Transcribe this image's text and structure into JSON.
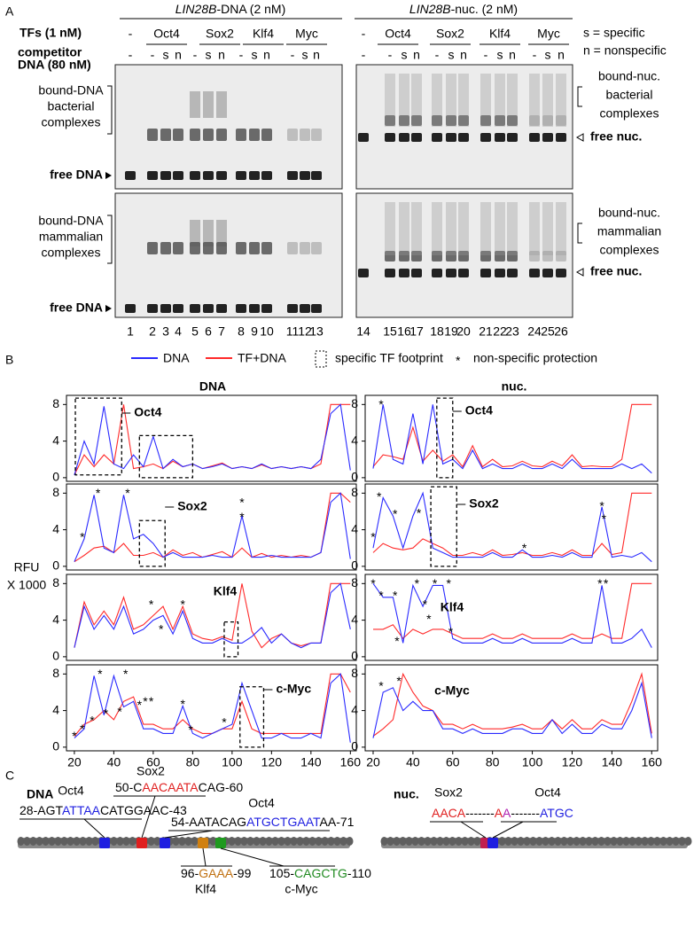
{
  "panel_a": {
    "label": "A",
    "header_dna": [
      {
        "text": "LIN28B",
        "italic": true
      },
      {
        "text": "-DNA (2 nM)"
      }
    ],
    "header_nuc": [
      {
        "text": "LIN28B",
        "italic": true
      },
      {
        "text": "-nuc. (2 nM)"
      }
    ],
    "tfs_label": "TFs (1 nM)",
    "tfs": [
      {
        "text": "-"
      },
      {
        "text": "Oct4",
        "color": "#1f1fe0"
      },
      {
        "text": "Sox2",
        "color": "#e01f1f"
      },
      {
        "text": "Klf4",
        "color": "#a0601a"
      },
      {
        "text": "Myc",
        "color": "#1f8a1f"
      },
      {
        "text": "-"
      },
      {
        "text": "Oct4",
        "color": "#1f1fe0"
      },
      {
        "text": "Sox2",
        "color": "#e01f1f"
      },
      {
        "text": "Klf4",
        "color": "#a0601a"
      },
      {
        "text": "Myc",
        "color": "#1f8a1f"
      }
    ],
    "competitor_label": "competitor",
    "competitor_label2": "DNA (80 nM)",
    "competitor": [
      "-",
      "-",
      "s",
      "n",
      "-",
      "s",
      "n",
      "-",
      "s",
      "n",
      "-",
      "s",
      "n",
      "-",
      "-",
      "s",
      "n",
      "-",
      "s",
      "n",
      "-",
      "s",
      "n",
      "-",
      "s",
      "n"
    ],
    "legend_s": "s = specific",
    "legend_n": "n = nonspecific",
    "left_top": [
      "bound-DNA",
      "bacterial",
      "complexes"
    ],
    "left_bottom": [
      "bound-DNA",
      "mammalian",
      "complexes"
    ],
    "free_dna": "free DNA",
    "right_top": [
      "bound-nuc.",
      "bacterial",
      "complexes"
    ],
    "right_bottom": [
      "bound-nuc.",
      "mammalian",
      "complexes"
    ],
    "free_nuc": "free nuc.",
    "lanes": [
      1,
      2,
      3,
      4,
      5,
      6,
      7,
      8,
      9,
      10,
      11,
      12,
      13,
      14,
      15,
      16,
      17,
      18,
      19,
      20,
      21,
      22,
      23,
      24,
      25,
      26
    ]
  },
  "panel_b": {
    "label": "B",
    "legend": {
      "dna": "DNA",
      "tf_dna": "TF+DNA",
      "footprint": "specific TF footprint",
      "star": "*",
      "nonspecific": "non-specific protection"
    },
    "col_titles": [
      "DNA",
      "nuc."
    ],
    "y_label": [
      "RFU",
      "X 1000"
    ],
    "colors": {
      "dna": "#2a2aff",
      "tf_dna": "#ff2a2a"
    },
    "xlim": [
      16,
      163
    ],
    "ylim": [
      -0.4,
      9
    ],
    "xticks": [
      20,
      40,
      60,
      80,
      100,
      120,
      140,
      160
    ],
    "yticks": [
      0,
      4,
      8
    ],
    "x": [
      20,
      25,
      30,
      35,
      40,
      45,
      50,
      55,
      60,
      65,
      70,
      75,
      80,
      85,
      90,
      95,
      100,
      105,
      110,
      115,
      120,
      125,
      130,
      135,
      140,
      145,
      150,
      155,
      160
    ],
    "panels": [
      {
        "tf": "Oct4",
        "boxes": [
          {
            "x": [
              20.5,
              44
            ],
            "y": [
              0.3,
              8.7
            ]
          },
          {
            "x": [
              53,
              80
            ],
            "y": [
              0,
              4.6
            ]
          }
        ],
        "dna": [
          0.3,
          4,
          1.5,
          7.8,
          1.5,
          1,
          2.5,
          1.2,
          4.5,
          1,
          2,
          1.2,
          1.5,
          1,
          1.2,
          1.5,
          1,
          1.2,
          1,
          1.5,
          1,
          1.2,
          1,
          1.2,
          1,
          2,
          7,
          8,
          0.8
        ],
        "tf_dna": [
          0.3,
          2.5,
          1.2,
          2.5,
          1.5,
          8,
          1,
          1.2,
          1.5,
          1,
          1.8,
          1.2,
          1.5,
          1,
          1.3,
          1.6,
          1,
          1.2,
          1,
          1.4,
          1,
          1.2,
          1,
          1.2,
          1,
          1.5,
          8,
          8,
          8
        ],
        "stars": []
      },
      {
        "tf": "Oct4",
        "boxes": [
          {
            "x": [
              52,
              60
            ],
            "y": [
              0,
              8.7
            ]
          }
        ],
        "dna": [
          1,
          8,
          2,
          1.5,
          7,
          1.5,
          8,
          1.5,
          2,
          1,
          3,
          1,
          1.5,
          1,
          1,
          1.5,
          1,
          1,
          1.5,
          1,
          2,
          1,
          1,
          1,
          1,
          1.5,
          1,
          1.5,
          0.5
        ],
        "tf_dna": [
          1.2,
          2.5,
          2.3,
          2,
          5.5,
          1.8,
          3,
          1.8,
          2.5,
          1.2,
          3.5,
          1.2,
          2,
          1.2,
          1.3,
          1.8,
          1.3,
          1.2,
          1.8,
          1.3,
          2.5,
          1.2,
          1.3,
          1.2,
          1.2,
          2,
          8,
          8,
          8
        ],
        "stars": [
          [
            24,
            8.2
          ]
        ]
      },
      {
        "tf": "Sox2",
        "boxes": [
          {
            "x": [
              53,
              66
            ],
            "y": [
              0,
              5
            ]
          }
        ],
        "dna": [
          0.5,
          3,
          7.8,
          2,
          1.5,
          7.8,
          3,
          3.5,
          2.5,
          1,
          1.5,
          1,
          1,
          1,
          1.2,
          1,
          1,
          5.5,
          1,
          1,
          1.2,
          1,
          1,
          1,
          1,
          1.5,
          7,
          8,
          0.8
        ],
        "tf_dna": [
          0.5,
          1.2,
          2,
          2.2,
          1.5,
          2.5,
          1.2,
          1.2,
          1.5,
          1,
          1.8,
          1.2,
          1.5,
          1,
          1.3,
          1.6,
          1,
          2,
          1,
          1.4,
          1,
          1.2,
          1,
          1.2,
          1,
          1.5,
          8,
          8,
          7
        ],
        "stars": [
          [
            24,
            3.4
          ],
          [
            32,
            8.2
          ],
          [
            47,
            8.2
          ],
          [
            105,
            7.2
          ],
          [
            105,
            5.6
          ]
        ]
      },
      {
        "tf": "Sox2",
        "boxes": [
          {
            "x": [
              49,
              62
            ],
            "y": [
              0,
              8.7
            ]
          }
        ],
        "dna": [
          2,
          7.5,
          5.5,
          2,
          5.5,
          8,
          2,
          1.5,
          1,
          1,
          1,
          1,
          1.5,
          1,
          1,
          1.8,
          1,
          1,
          1.2,
          1,
          1.5,
          1,
          1,
          6.5,
          1,
          1.2,
          1,
          1.5,
          0.5
        ],
        "tf_dna": [
          1.5,
          2.5,
          2,
          1.8,
          2,
          3,
          2.5,
          2,
          1.2,
          1.2,
          1.5,
          1.2,
          1.8,
          1.2,
          1.3,
          1.5,
          1.2,
          1.2,
          1.5,
          1.2,
          1.8,
          1.2,
          1.2,
          2.5,
          1.3,
          1.5,
          8,
          8,
          8
        ],
        "stars": [
          [
            20,
            3.4
          ],
          [
            23,
            7.8
          ],
          [
            31,
            5.9
          ],
          [
            43,
            6
          ],
          [
            96,
            2.2
          ],
          [
            135,
            6.8
          ],
          [
            136,
            5.4
          ]
        ]
      },
      {
        "tf": "Klf4",
        "boxes": [
          {
            "x": [
              96,
              103
            ],
            "y": [
              0,
              3.8
            ]
          }
        ],
        "dna": [
          1,
          5.5,
          3,
          4.5,
          3,
          5.5,
          2.5,
          3,
          4,
          4.5,
          2.5,
          5,
          2,
          1.5,
          1.5,
          2,
          1.5,
          1.5,
          2.2,
          3.2,
          1.5,
          2.5,
          1.5,
          1,
          1.5,
          1.5,
          7,
          8,
          3
        ],
        "tf_dna": [
          1,
          6,
          3.5,
          5,
          3.5,
          6.5,
          3,
          3.5,
          4.5,
          5.5,
          3,
          5.5,
          2.5,
          2,
          1.8,
          2.2,
          1.8,
          8,
          2.8,
          1,
          2,
          2.5,
          1.5,
          1.2,
          1.5,
          1.5,
          8,
          8,
          8
        ],
        "stars": [
          [
            59,
            5.9
          ],
          [
            64,
            3.2
          ],
          [
            75,
            5.9
          ]
        ]
      },
      {
        "tf": "Klf4",
        "boxes": [],
        "dna": [
          8,
          6.5,
          6.5,
          1.5,
          7.8,
          5.5,
          7.8,
          7.8,
          2,
          1.5,
          1.5,
          1.5,
          2,
          1.5,
          1.5,
          2,
          1.5,
          1.5,
          1.5,
          1.5,
          2,
          1.5,
          1.5,
          7.8,
          1.5,
          1.5,
          2,
          3,
          1
        ],
        "tf_dna": [
          3,
          3,
          3.5,
          2,
          3,
          2.5,
          3,
          3,
          2.5,
          2,
          2,
          2,
          2.5,
          2,
          2,
          2.5,
          2,
          2,
          2,
          2,
          2.5,
          2,
          2,
          2.5,
          2,
          2,
          8,
          8,
          8
        ],
        "stars": [
          [
            20,
            8.2
          ],
          [
            24,
            6.9
          ],
          [
            31,
            6.9
          ],
          [
            32,
            1.9
          ],
          [
            42,
            8.2
          ],
          [
            46,
            5.9
          ],
          [
            48,
            4.3
          ],
          [
            51,
            8.2
          ],
          [
            58,
            8.2
          ],
          [
            59,
            2.9
          ],
          [
            134,
            8.2
          ],
          [
            137,
            8.2
          ]
        ]
      },
      {
        "tf": "c-Myc",
        "boxes": [
          {
            "x": [
              104,
              116
            ],
            "y": [
              0,
              6.6
            ]
          }
        ],
        "dna": [
          1,
          2,
          7.8,
          3.5,
          7.8,
          4.4,
          5,
          2,
          2,
          1.5,
          1.5,
          4.5,
          1.5,
          1,
          1.5,
          2,
          2.5,
          7,
          4,
          1,
          1,
          1.5,
          1,
          1,
          1.5,
          1,
          7,
          8,
          0.5
        ],
        "tf_dna": [
          1.2,
          2.5,
          3,
          4,
          3,
          5,
          5.5,
          2.5,
          2.5,
          2,
          2,
          3,
          2,
          1.5,
          1.5,
          2,
          2,
          5,
          2,
          1.5,
          1.5,
          1.5,
          1.5,
          1.5,
          1.5,
          1.5,
          8,
          8,
          6
        ],
        "stars": [
          [
            20,
            1.4
          ],
          [
            24,
            2.2
          ],
          [
            29,
            3.1
          ],
          [
            33,
            8.2
          ],
          [
            36,
            3.9
          ],
          [
            43,
            4.1
          ],
          [
            46,
            8.2
          ],
          [
            53,
            4.8
          ],
          [
            56,
            5.2
          ],
          [
            59,
            5.2
          ],
          [
            75,
            4.9
          ],
          [
            79,
            2.1
          ],
          [
            96,
            2.9
          ]
        ]
      },
      {
        "tf": "c-Myc",
        "boxes": [],
        "dna": [
          1,
          6,
          6.5,
          4,
          5,
          4,
          4,
          2,
          2,
          1.5,
          2,
          1.5,
          1.5,
          1.5,
          2,
          2,
          1.5,
          1.5,
          3,
          1.5,
          2.5,
          1.5,
          1.5,
          2.5,
          2,
          2,
          4,
          7,
          1
        ],
        "tf_dna": [
          1.2,
          2,
          3,
          8,
          6,
          4.5,
          4,
          2.5,
          2.5,
          2,
          2.5,
          2,
          2,
          2,
          2.2,
          2.5,
          2,
          2,
          3,
          2,
          3,
          2,
          2,
          3,
          2.5,
          2.5,
          5,
          8,
          1.5
        ],
        "stars": [
          [
            24,
            6.9
          ],
          [
            33,
            7.4
          ]
        ]
      }
    ]
  },
  "panel_c": {
    "label": "C",
    "dna_title": "DNA",
    "nuc_title": "nuc.",
    "sites": [
      {
        "tf": "Oct4",
        "color": "#1f1fe0",
        "seq": [
          {
            "text": "28-AGT"
          },
          {
            "text": "ATTAA",
            "color": "#1f1fe0"
          },
          {
            "text": "CATGGAAC-43"
          }
        ]
      },
      {
        "tf": "Sox2",
        "color": "#e01f1f",
        "seq": [
          {
            "text": "50-C"
          },
          {
            "text": "AACAATA",
            "color": "#e01f1f"
          },
          {
            "text": "CAG-60"
          }
        ]
      },
      {
        "tf": "Oct4",
        "color": "#1f1fe0",
        "seq": [
          {
            "text": "54-AATACAG"
          },
          {
            "text": "ATGCTGAAT",
            "color": "#1f1fe0"
          },
          {
            "text": "AA-71"
          }
        ]
      },
      {
        "tf": "Klf4",
        "color": "#c07010",
        "seq": [
          {
            "text": "96-"
          },
          {
            "text": "GAAA",
            "color": "#c07010"
          },
          {
            "text": "-99"
          }
        ]
      },
      {
        "tf": "c-Myc",
        "color": "#1f8a1f",
        "seq": [
          {
            "text": "105-"
          },
          {
            "text": "CAGCTG",
            "color": "#1f8a1f"
          },
          {
            "text": "-110"
          }
        ]
      },
      {
        "tf": "Sox2",
        "color": "#e01f1f",
        "seq": [
          {
            "text": "AACA",
            "color": "#e01f1f"
          },
          {
            "text": "-------"
          },
          {
            "text": "A",
            "color": "#e01f1f"
          }
        ]
      },
      {
        "tf": "Oct4",
        "color": "#1f1fe0",
        "seq": [
          {
            "text": "A",
            "color": "#b020b0"
          },
          {
            "text": "-------"
          },
          {
            "text": "ATGC",
            "color": "#1f1fe0"
          }
        ]
      }
    ]
  }
}
